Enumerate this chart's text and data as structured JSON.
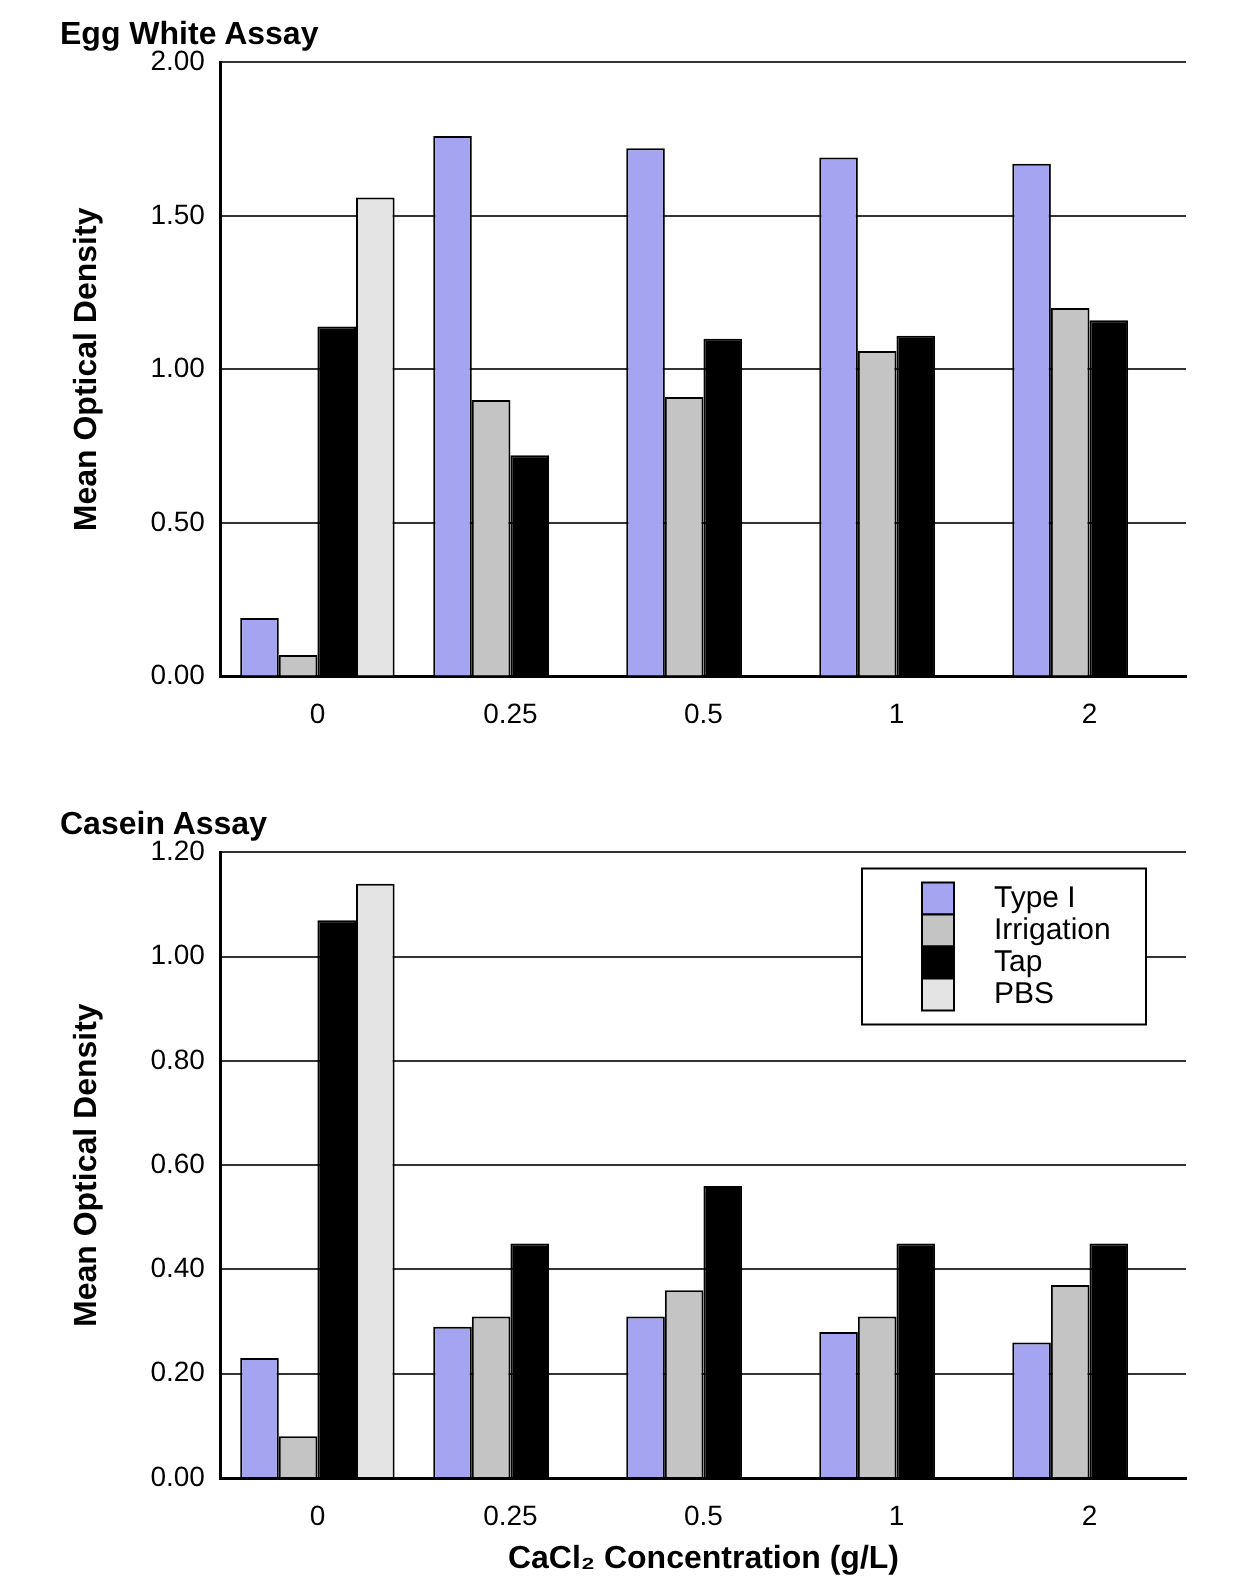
{
  "chart_data": [
    {
      "type": "bar",
      "title": "Egg White Assay",
      "ylabel": "Mean Optical Density",
      "categories": [
        "0",
        "0.25",
        "0.5",
        "1",
        "2"
      ],
      "series": [
        {
          "color": "#a4a4f0",
          "values": [
            0.19,
            1.76,
            1.72,
            1.69,
            1.67
          ]
        },
        {
          "color": "#c4c4c4",
          "values": [
            0.07,
            0.9,
            0.91,
            1.06,
            1.2
          ]
        },
        {
          "color": "#000000",
          "values": [
            1.14,
            0.72,
            1.1,
            1.11,
            1.16
          ]
        },
        {
          "color": "#e4e4e4",
          "values": [
            1.56,
            null,
            null,
            null,
            null
          ]
        }
      ],
      "ylim": [
        0,
        2
      ],
      "yticks": [
        {
          "value": 0,
          "label": "0.00"
        },
        {
          "value": 0.5,
          "label": "0.50"
        },
        {
          "value": 1,
          "label": "1.00"
        },
        {
          "value": 1.5,
          "label": "1.50"
        },
        {
          "value": 2,
          "label": "2.00"
        }
      ],
      "grid": "y",
      "legend": false
    },
    {
      "type": "bar",
      "title": "Casein Assay",
      "ylabel": "Mean Optical Density",
      "xlabel": "CaCl₂ Concentration (g/L)",
      "categories": [
        "0",
        "0.25",
        "0.5",
        "1",
        "2"
      ],
      "series": [
        {
          "name": "Type I",
          "color": "#a4a4f0",
          "values": [
            0.23,
            0.29,
            0.31,
            0.28,
            0.26
          ]
        },
        {
          "name": "Irrigation",
          "color": "#c4c4c4",
          "values": [
            0.08,
            0.31,
            0.36,
            0.31,
            0.37
          ]
        },
        {
          "name": "Tap",
          "color": "#000000",
          "values": [
            1.07,
            0.45,
            0.56,
            0.45,
            0.45
          ]
        },
        {
          "name": "PBS",
          "color": "#e4e4e4",
          "values": [
            1.14,
            null,
            null,
            null,
            null
          ]
        }
      ],
      "ylim": [
        0,
        1.2
      ],
      "yticks": [
        {
          "value": 0,
          "label": "0.00"
        },
        {
          "value": 0.2,
          "label": "0.20"
        },
        {
          "value": 0.4,
          "label": "0.40"
        },
        {
          "value": 0.6,
          "label": "0.60"
        },
        {
          "value": 0.8,
          "label": "0.80"
        },
        {
          "value": 1,
          "label": "1.00"
        },
        {
          "value": 1.2,
          "label": "1.20"
        }
      ],
      "grid": "y",
      "legend": "top right"
    }
  ]
}
